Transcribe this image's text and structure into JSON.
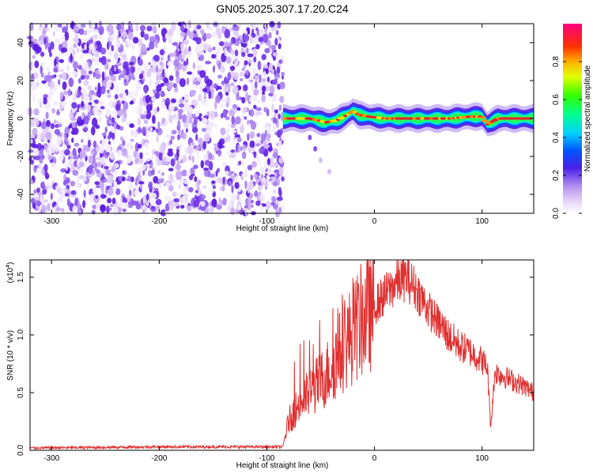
{
  "title": "GN05.2025.307.17.20.C24",
  "colors": {
    "snr_line": "#e03030",
    "spectrogram_noise": "#7a2be6",
    "ridge_core": "#e8202a"
  },
  "chart_data": [
    {
      "type": "heatmap",
      "name": "spectrogram",
      "xlabel": "Height of straight line (km)",
      "ylabel": "Frequency (Hz)",
      "xlim": [
        -320,
        148
      ],
      "ylim": [
        -50,
        50
      ],
      "xticks": [
        -300,
        -200,
        -100,
        0,
        100
      ],
      "yticks": [
        -40,
        -20,
        0,
        20,
        40
      ],
      "noise_region_x": [
        -320,
        -85
      ],
      "ridge": {
        "start_x": -85,
        "end_x": 148,
        "frequency_hz": [
          [
            -85,
            0
          ],
          [
            -60,
            0
          ],
          [
            -45,
            -2
          ],
          [
            -35,
            -1
          ],
          [
            -25,
            2
          ],
          [
            -20,
            4
          ],
          [
            -15,
            2
          ],
          [
            -5,
            1
          ],
          [
            10,
            0
          ],
          [
            40,
            0
          ],
          [
            70,
            0
          ],
          [
            90,
            1
          ],
          [
            100,
            1
          ],
          [
            105,
            -3
          ],
          [
            115,
            0
          ],
          [
            130,
            0
          ],
          [
            148,
            0
          ]
        ]
      },
      "secondary_trace": [
        [
          -60,
          -10
        ],
        [
          -55,
          -16
        ],
        [
          -50,
          -22
        ],
        [
          -42,
          -28
        ]
      ],
      "colorbar": {
        "label": "Normalized spectral amplitude",
        "ticks": [
          "0.0",
          "0.2",
          "0.4",
          "0.6",
          "0.8"
        ],
        "range": [
          0,
          1
        ]
      }
    },
    {
      "type": "line",
      "name": "snr",
      "xlabel": "Height of straight line (km)",
      "ylabel": "SNR (10 * v/v)",
      "multiplier_label": "(x10",
      "multiplier_exponent": "4",
      "xlim": [
        -320,
        148
      ],
      "ylim": [
        0,
        1.65
      ],
      "xticks": [
        -300,
        -200,
        -100,
        0,
        100
      ],
      "yticks": [
        "0.0",
        "0.5",
        "1.0",
        "1.5"
      ],
      "envelope": [
        [
          -320,
          0.02
        ],
        [
          -200,
          0.03
        ],
        [
          -130,
          0.03
        ],
        [
          -85,
          0.03
        ],
        [
          -80,
          0.25
        ],
        [
          -70,
          0.4
        ],
        [
          -55,
          0.55
        ],
        [
          -45,
          0.65
        ],
        [
          -35,
          0.8
        ],
        [
          -25,
          0.95
        ],
        [
          -10,
          1.15
        ],
        [
          0,
          1.25
        ],
        [
          10,
          1.35
        ],
        [
          20,
          1.45
        ],
        [
          30,
          1.5
        ],
        [
          40,
          1.38
        ],
        [
          50,
          1.22
        ],
        [
          60,
          1.1
        ],
        [
          70,
          0.98
        ],
        [
          80,
          0.9
        ],
        [
          90,
          0.85
        ],
        [
          100,
          0.78
        ],
        [
          105,
          0.72
        ],
        [
          108,
          0.2
        ],
        [
          112,
          0.68
        ],
        [
          125,
          0.62
        ],
        [
          140,
          0.55
        ],
        [
          148,
          0.5
        ]
      ]
    }
  ]
}
